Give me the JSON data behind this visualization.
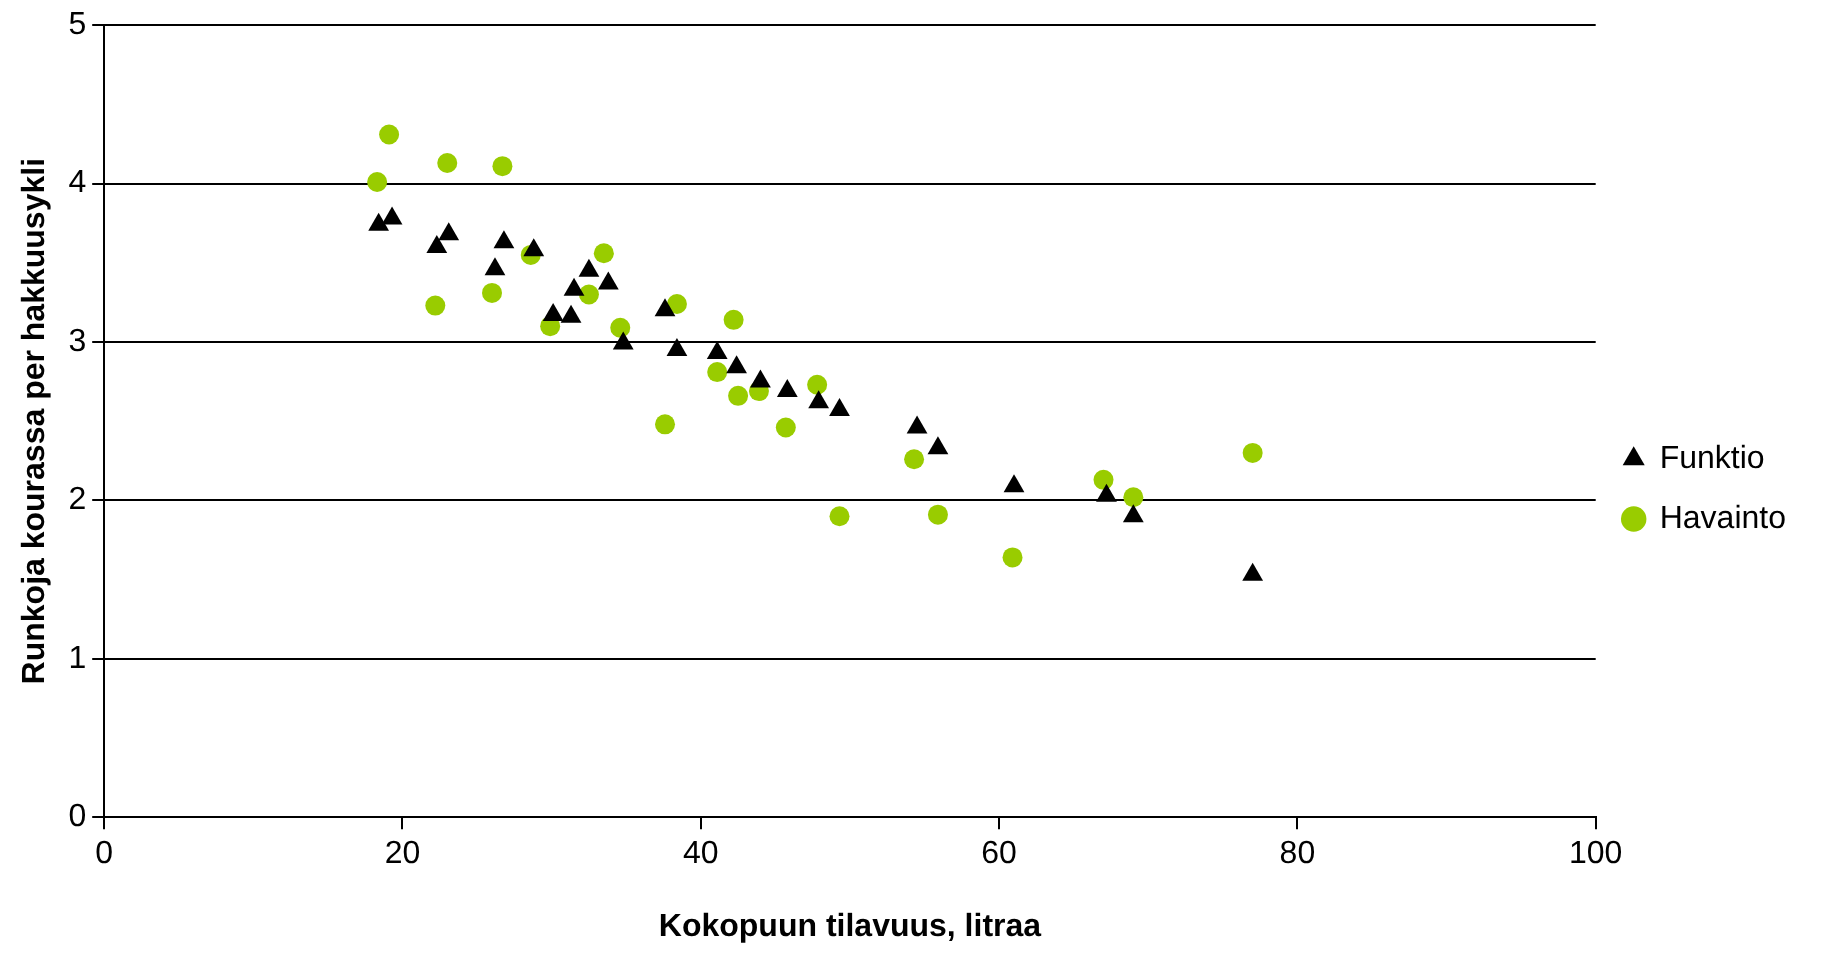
{
  "chart_data": {
    "type": "scatter",
    "xlabel": "Kokopuun tilavuus, litraa",
    "ylabel": "Runkoja kourassa per hakkuusykli",
    "xlim": [
      0,
      100
    ],
    "xticks": [
      0,
      20,
      40,
      60,
      80,
      100
    ],
    "ylim": [
      0,
      5
    ],
    "yticks": [
      0,
      1,
      2,
      3,
      4,
      5
    ],
    "grid": "y",
    "legend": "right",
    "series": [
      {
        "name": "Havainto",
        "color": "#99cc00",
        "marker": "circle",
        "x": [
          18.3,
          19.1,
          23.0,
          26.7,
          22.2,
          26.0,
          28.6,
          29.9,
          33.5,
          32.5,
          34.6,
          38.4,
          42.2,
          41.1,
          42.5,
          37.6,
          43.9,
          47.8,
          45.7,
          49.3,
          54.3,
          55.9,
          60.9,
          67.0,
          69.0,
          77.0
        ],
        "values": [
          4.01,
          4.31,
          4.13,
          4.11,
          3.23,
          3.31,
          3.55,
          3.1,
          3.56,
          3.3,
          3.09,
          3.24,
          3.14,
          2.81,
          2.66,
          2.48,
          2.69,
          2.73,
          2.46,
          1.9,
          2.26,
          1.91,
          1.64,
          2.13,
          2.02,
          2.3
        ]
      },
      {
        "name": "Funktio",
        "color": "#000000",
        "marker": "triangle",
        "x": [
          18.4,
          19.3,
          22.3,
          23.1,
          26.8,
          26.2,
          28.8,
          30.1,
          31.3,
          31.5,
          32.5,
          33.8,
          34.8,
          37.6,
          38.4,
          41.1,
          42.4,
          44.0,
          45.8,
          47.9,
          49.3,
          54.5,
          55.9,
          61.0,
          67.2,
          69.0,
          77.0
        ],
        "values": [
          3.74,
          3.78,
          3.6,
          3.68,
          3.63,
          3.46,
          3.58,
          3.17,
          3.16,
          3.33,
          3.45,
          3.37,
          2.99,
          3.2,
          2.95,
          2.93,
          2.84,
          2.75,
          2.69,
          2.62,
          2.57,
          2.46,
          2.33,
          2.09,
          2.03,
          1.9,
          1.53
        ]
      }
    ]
  }
}
